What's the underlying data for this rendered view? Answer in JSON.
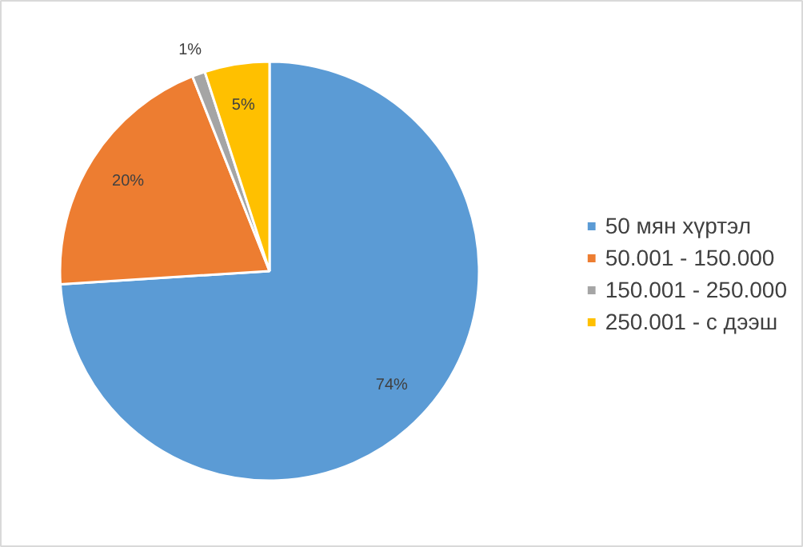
{
  "chart_data": {
    "type": "pie",
    "categories": [
      "50 мян хүртэл",
      "50.001 - 150.000",
      "150.001 - 250.000",
      "250.001 - с дээш"
    ],
    "values": [
      74,
      20,
      1,
      5
    ],
    "colors": [
      "#5b9bd5",
      "#ed7d31",
      "#a5a5a5",
      "#ffc000"
    ],
    "value_labels": [
      "74%",
      "20%",
      "1%",
      "5%"
    ],
    "legend": "right"
  }
}
